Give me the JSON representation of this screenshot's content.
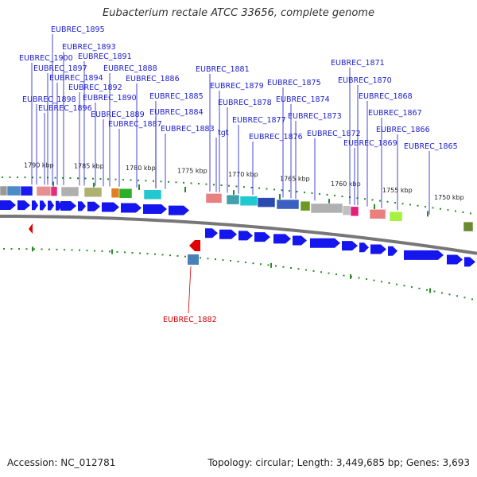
{
  "title": "Eubacterium rectale ATCC 33656, complete genome",
  "footer": {
    "accession": "Accession: NC_012781",
    "summary": "Topology: circular; Length: 3,449,685 bp; Genes: 3,693"
  },
  "colors": {
    "label": "#1a1acd",
    "highlight_label": "#cc0000",
    "gene_arrow": "#1515ee",
    "backbone": "#777777",
    "tick": "#2a8a2a"
  },
  "scale_labels": [
    "1790 kbp",
    "1785 kbp",
    "1780 kbp",
    "1775 kbp",
    "1770 kbp",
    "1765 kbp",
    "1760 kbp",
    "1755 kbp",
    "1750 kbp"
  ],
  "gene_labels": [
    "EUBREC_1895",
    "EUBREC_1893",
    "EUBREC_1900",
    "EUBREC_1891",
    "EUBREC_1897",
    "EUBREC_1888",
    "EUBREC_1894",
    "EUBREC_1886",
    "EUBREC_1892",
    "EUBREC_1898",
    "EUBREC_1890",
    "EUBREC_1896",
    "EUBREC_1889",
    "EUBREC_1887",
    "EUBREC_1885",
    "EUBREC_1884",
    "EUBREC_1883",
    "EUBREC_1881",
    "EUBREC_1879",
    "EUBREC_1878",
    "tgt",
    "EUBREC_1877",
    "EUBREC_1876",
    "EUBREC_1875",
    "EUBREC_1874",
    "EUBREC_1873",
    "EUBREC_1872",
    "EUBREC_1871",
    "EUBREC_1870",
    "EUBREC_1868",
    "EUBREC_1867",
    "EUBREC_1869",
    "EUBREC_1866",
    "EUBREC_1865"
  ],
  "highlight_label": "EUBREC_1882"
}
